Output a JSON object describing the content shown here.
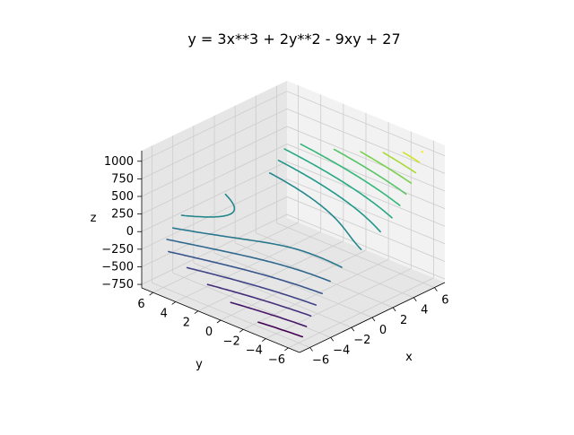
{
  "chart_data": {
    "type": "contour3d",
    "title": "y = 3x**3 + 2y**2 - 9xy + 27",
    "xlabel": "x",
    "ylabel": "y",
    "zlabel": "z",
    "xlim": [
      -7,
      7
    ],
    "ylim": [
      -7,
      7
    ],
    "zlim": [
      -800,
      1150
    ],
    "x_ticks": [
      -6,
      -4,
      -2,
      0,
      2,
      4,
      6
    ],
    "y_ticks": [
      -6,
      -4,
      -2,
      0,
      2,
      4,
      6
    ],
    "z_ticks": [
      -750,
      -500,
      -250,
      0,
      250,
      500,
      750,
      1000
    ],
    "x_tick_labels": [
      "−6",
      "−4",
      "−2",
      "0",
      "2",
      "4",
      "6"
    ],
    "y_tick_labels": [
      "−6",
      "−4",
      "−2",
      "0",
      "2",
      "4",
      "6"
    ],
    "z_tick_labels": [
      "−750",
      "−500",
      "−250",
      "0",
      "250",
      "500",
      "750",
      "1000"
    ],
    "surface": {
      "a": 3,
      "b": 2,
      "c": -9,
      "d": 27,
      "domain": [
        -6,
        6
      ]
    },
    "levels": [
      -740,
      -620,
      -500,
      -380,
      -260,
      -140,
      -20,
      100,
      220,
      340,
      460,
      580,
      700,
      820,
      940,
      1060
    ],
    "colormap": "viridis",
    "grid": true,
    "projection": {
      "elev": 30,
      "azim": -135
    }
  },
  "colors": {
    "pane_light": "#f2f2f2",
    "pane_dark": "#e6e6e6",
    "grid": "#cccccc"
  }
}
